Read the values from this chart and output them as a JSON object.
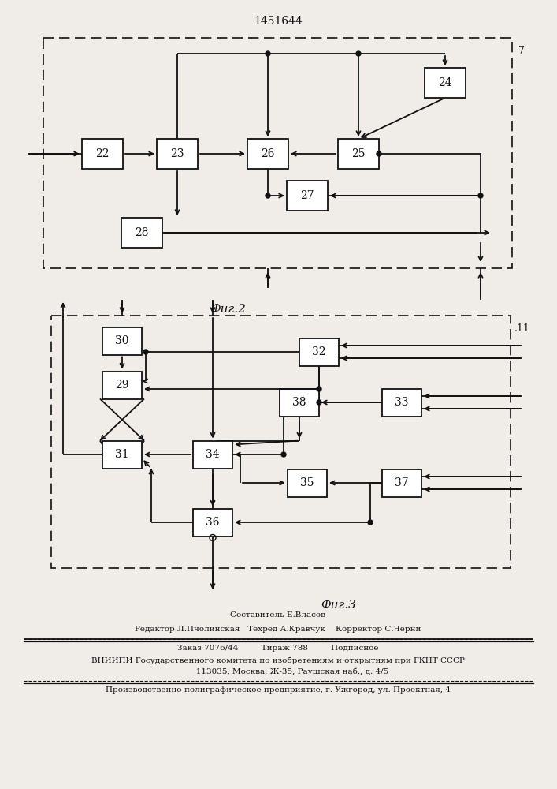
{
  "title": "1451644",
  "fig2_label": "Фиг.2",
  "fig3_label": "Фиг.3",
  "footer_line1": "Составитель Е.Власов",
  "footer_line2": "Редактор Л.Пчолинская   Техред А.Кравчук    Корректор С.Черни",
  "footer_line3": "Заказ 7076/44         Тираж 788         Подписное",
  "footer_line4": "ВНИИПИ Государственного комитета по изобретениям и открытиям при ГКНТ СССР",
  "footer_line5": "           113035, Москва, Ж-35, Раушская наб., д. 4/5",
  "footer_line6": "Производственно-полиграфическое предприятие, г. Ужгород, ул. Проектная, 4",
  "bg_color": "#f0ede8",
  "box_color": "#ffffff",
  "line_color": "#111111",
  "text_color": "#111111"
}
